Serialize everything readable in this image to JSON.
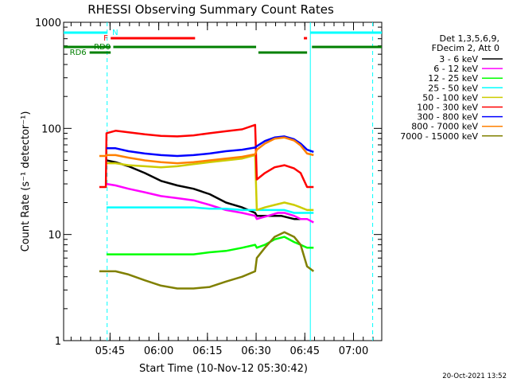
{
  "chart_data": {
    "type": "line",
    "title": "RHESSI Observing Summary Count Rates",
    "xlabel": "Start Time (10-Nov-12 05:30:42)",
    "ylabel": "Count Rate (s⁻¹ detector⁻¹)",
    "footer": "20-Oct-2021 13:52",
    "x_unit": "minutes after 05:30:42",
    "xlim": [
      0,
      98
    ],
    "ylim": [
      1,
      1000
    ],
    "yscale": "log",
    "x_ticks": [
      {
        "label": "05:45",
        "t": 14.3
      },
      {
        "label": "06:00",
        "t": 29.3
      },
      {
        "label": "06:15",
        "t": 44.3
      },
      {
        "label": "06:30",
        "t": 59.3
      },
      {
        "label": "06:45",
        "t": 74.3
      },
      {
        "label": "07:00",
        "t": 89.3
      }
    ],
    "y_ticks": [
      {
        "label": "1",
        "v": 1
      },
      {
        "label": "10",
        "v": 10
      },
      {
        "label": "100",
        "v": 100
      },
      {
        "label": "1000",
        "v": 1000
      }
    ],
    "legend": {
      "header": [
        "Det 1,3,5,6,9,",
        "FDecim 2, Att 0"
      ],
      "position": "right"
    },
    "series": [
      {
        "name": "3 - 6 keV",
        "color": "#000000",
        "points": [
          [
            13.2,
            50
          ],
          [
            16,
            48
          ],
          [
            20,
            44
          ],
          [
            25,
            38
          ],
          [
            30,
            32
          ],
          [
            35,
            29
          ],
          [
            40,
            27
          ],
          [
            45,
            24
          ],
          [
            50,
            20
          ],
          [
            55,
            18
          ],
          [
            59,
            16
          ],
          [
            59.5,
            15
          ],
          [
            63,
            15
          ],
          [
            67,
            15
          ],
          [
            71,
            14
          ],
          [
            73,
            14
          ]
        ]
      },
      {
        "name": "6 - 12 keV",
        "color": "#ff00ff",
        "points": [
          [
            13.2,
            30
          ],
          [
            16,
            29
          ],
          [
            20,
            27
          ],
          [
            25,
            25
          ],
          [
            30,
            23
          ],
          [
            35,
            22
          ],
          [
            40,
            21
          ],
          [
            45,
            19
          ],
          [
            50,
            17
          ],
          [
            55,
            16
          ],
          [
            59,
            15
          ],
          [
            59.5,
            14
          ],
          [
            63,
            15
          ],
          [
            66,
            16
          ],
          [
            68,
            16
          ],
          [
            71,
            15
          ],
          [
            73,
            14
          ],
          [
            75,
            14
          ],
          [
            77,
            13
          ]
        ]
      },
      {
        "name": "12 - 25 keV",
        "color": "#00ff00",
        "points": [
          [
            13.2,
            6.5
          ],
          [
            16,
            6.5
          ],
          [
            20,
            6.5
          ],
          [
            25,
            6.5
          ],
          [
            30,
            6.5
          ],
          [
            35,
            6.5
          ],
          [
            40,
            6.5
          ],
          [
            45,
            6.8
          ],
          [
            50,
            7
          ],
          [
            55,
            7.5
          ],
          [
            59,
            8
          ],
          [
            59.5,
            7.5
          ],
          [
            62,
            8
          ],
          [
            65,
            9
          ],
          [
            68,
            9.5
          ],
          [
            71,
            8.5
          ],
          [
            73,
            8
          ],
          [
            75,
            7.5
          ],
          [
            77,
            7.5
          ]
        ]
      },
      {
        "name": "25 - 50 keV",
        "color": "#00ffff",
        "points": [
          [
            13.2,
            18
          ],
          [
            16,
            18
          ],
          [
            20,
            18
          ],
          [
            25,
            18
          ],
          [
            30,
            18
          ],
          [
            35,
            18
          ],
          [
            40,
            18
          ],
          [
            45,
            17.5
          ],
          [
            50,
            17.5
          ],
          [
            55,
            17
          ],
          [
            59,
            17
          ],
          [
            59.5,
            17
          ],
          [
            62,
            17
          ],
          [
            65,
            17
          ],
          [
            68,
            17
          ],
          [
            71,
            16
          ],
          [
            73,
            16
          ],
          [
            75,
            16
          ],
          [
            77,
            16
          ]
        ]
      },
      {
        "name": "50 - 100 keV",
        "color": "#cccc00",
        "points": [
          [
            13.2,
            47
          ],
          [
            16,
            47
          ],
          [
            20,
            45
          ],
          [
            25,
            44
          ],
          [
            30,
            43
          ],
          [
            35,
            44
          ],
          [
            40,
            46
          ],
          [
            45,
            48
          ],
          [
            50,
            50
          ],
          [
            55,
            52
          ],
          [
            59,
            56
          ],
          [
            59.5,
            17
          ],
          [
            62,
            18
          ],
          [
            65,
            19
          ],
          [
            68,
            20
          ],
          [
            71,
            19
          ],
          [
            73,
            18
          ],
          [
            75,
            17
          ],
          [
            77,
            17
          ]
        ]
      },
      {
        "name": "100 - 300 keV",
        "color": "#ff0000",
        "points": [
          [
            11,
            28
          ],
          [
            13,
            28
          ],
          [
            13.2,
            90
          ],
          [
            16,
            95
          ],
          [
            20,
            92
          ],
          [
            25,
            88
          ],
          [
            30,
            85
          ],
          [
            35,
            84
          ],
          [
            40,
            86
          ],
          [
            45,
            90
          ],
          [
            50,
            94
          ],
          [
            55,
            98
          ],
          [
            59,
            108
          ],
          [
            59.5,
            33
          ],
          [
            62,
            38
          ],
          [
            65,
            43
          ],
          [
            68,
            45
          ],
          [
            71,
            42
          ],
          [
            73,
            38
          ],
          [
            75,
            28
          ],
          [
            77,
            28
          ]
        ]
      },
      {
        "name": "300 - 800 keV",
        "color": "#0000ff",
        "points": [
          [
            13.2,
            65
          ],
          [
            16,
            65
          ],
          [
            20,
            61
          ],
          [
            25,
            58
          ],
          [
            30,
            56
          ],
          [
            35,
            55
          ],
          [
            40,
            56
          ],
          [
            45,
            58
          ],
          [
            50,
            61
          ],
          [
            55,
            63
          ],
          [
            59,
            66
          ],
          [
            59.5,
            68
          ],
          [
            62,
            76
          ],
          [
            65,
            82
          ],
          [
            68,
            84
          ],
          [
            71,
            79
          ],
          [
            73,
            72
          ],
          [
            75,
            63
          ],
          [
            77,
            60
          ]
        ]
      },
      {
        "name": "800 - 7000 keV",
        "color": "#ff8000",
        "points": [
          [
            11,
            55
          ],
          [
            13,
            55
          ],
          [
            13.2,
            56
          ],
          [
            16,
            56
          ],
          [
            20,
            53
          ],
          [
            25,
            50
          ],
          [
            30,
            48
          ],
          [
            35,
            47
          ],
          [
            40,
            48
          ],
          [
            45,
            50
          ],
          [
            50,
            52
          ],
          [
            55,
            54
          ],
          [
            59,
            57
          ],
          [
            59.5,
            63
          ],
          [
            62,
            72
          ],
          [
            65,
            80
          ],
          [
            68,
            82
          ],
          [
            71,
            77
          ],
          [
            73,
            69
          ],
          [
            75,
            58
          ],
          [
            77,
            56
          ]
        ]
      },
      {
        "name": "7000 - 15000 keV",
        "color": "#808000",
        "points": [
          [
            11,
            4.5
          ],
          [
            13,
            4.5
          ],
          [
            13.2,
            4.5
          ],
          [
            16,
            4.5
          ],
          [
            20,
            4.2
          ],
          [
            25,
            3.7
          ],
          [
            30,
            3.3
          ],
          [
            35,
            3.1
          ],
          [
            40,
            3.1
          ],
          [
            45,
            3.2
          ],
          [
            50,
            3.6
          ],
          [
            55,
            4
          ],
          [
            59,
            4.5
          ],
          [
            59.5,
            6
          ],
          [
            62,
            7.5
          ],
          [
            65,
            9.5
          ],
          [
            68,
            10.5
          ],
          [
            71,
            9.5
          ],
          [
            73,
            8
          ],
          [
            75,
            5
          ],
          [
            77,
            4.5
          ]
        ]
      }
    ],
    "annotations": [
      {
        "label": "N",
        "color": "#00ffff",
        "spans": [
          [
            0,
            13.5
          ],
          [
            76,
            98
          ]
        ]
      },
      {
        "label": "F",
        "color": "#ff0000",
        "spans": [
          [
            14.5,
            40.5
          ],
          [
            74,
            75
          ]
        ]
      },
      {
        "label": "RD0",
        "color": "#008000",
        "spans": [
          [
            0,
            14.5
          ],
          [
            15.3,
            59.3
          ],
          [
            76.5,
            98
          ]
        ]
      },
      {
        "label": "RD6",
        "color": "#008000",
        "spans": [
          [
            8,
            14.5
          ],
          [
            60,
            75
          ]
        ]
      }
    ],
    "vlines": [
      {
        "t": 13.4,
        "color": "#00ffff",
        "style": "dashed"
      },
      {
        "t": 76,
        "color": "#00ffff",
        "style": "solid"
      },
      {
        "t": 95.2,
        "color": "#00ffff",
        "style": "dashed"
      }
    ]
  }
}
